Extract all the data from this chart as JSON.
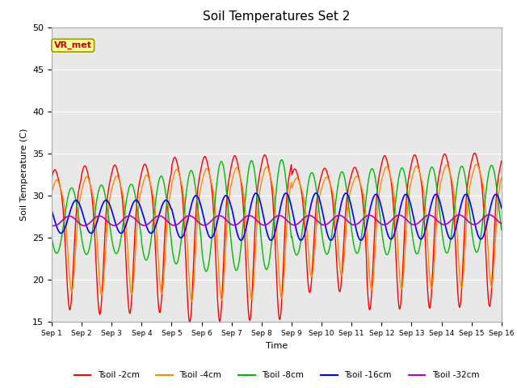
{
  "title": "Soil Temperatures Set 2",
  "xlabel": "Time",
  "ylabel": "Soil Temperature (C)",
  "ylim": [
    15,
    50
  ],
  "xlim": [
    0,
    15
  ],
  "xtick_labels": [
    "Sep 1",
    "Sep 2",
    "Sep 3",
    "Sep 4",
    "Sep 5",
    "Sep 6",
    "Sep 7",
    "Sep 8",
    "Sep 9",
    "Sep 10",
    "Sep 11",
    "Sep 12",
    "Sep 13",
    "Sep 14",
    "Sep 15",
    "Sep 16"
  ],
  "ytick_values": [
    15,
    20,
    25,
    30,
    35,
    40,
    45,
    50
  ],
  "series_colors": [
    "#FF0000",
    "#FF8C00",
    "#00BB00",
    "#0000FF",
    "#BB00BB"
  ],
  "series_labels": [
    "Tsoil -2cm",
    "Tsoil -4cm",
    "Tsoil -8cm",
    "Tsoil -16cm",
    "Tsoil -32cm"
  ],
  "plot_bg_color": "#E8E8E8",
  "watermark_text": "VR_met",
  "watermark_fg": "#CC0000",
  "watermark_bg": "#FFFF99"
}
